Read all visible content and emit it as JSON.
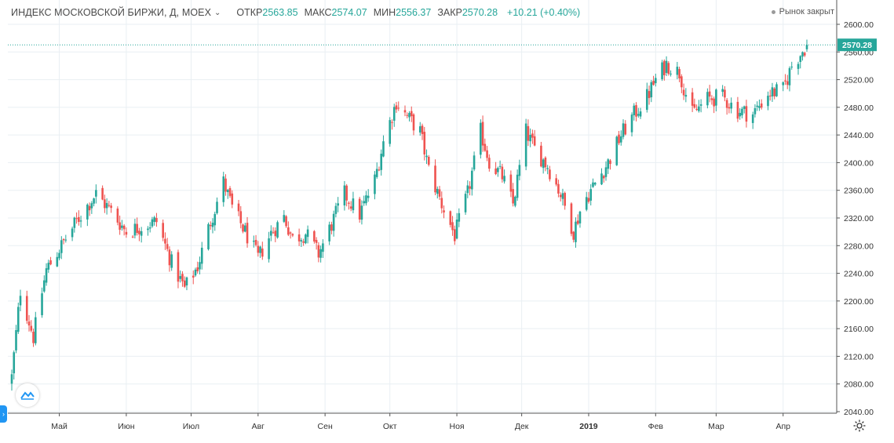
{
  "header": {
    "symbol": "ИНДЕКС МОСКОВСКОЙ БИРЖИ, Д, MOEX",
    "open_label": "ОТКР",
    "open": "2563.85",
    "high_label": "МАКС",
    "high": "2574.07",
    "low_label": "МИН",
    "low": "2556.37",
    "close_label": "ЗАКР",
    "close": "2570.28",
    "change": "+10.21 (+0.40%)",
    "market_status": "Рынок закрыт"
  },
  "colors": {
    "up": "#26a69a",
    "down": "#ef5350",
    "grid": "#e9eff3",
    "price_line": "#26a69a"
  },
  "icons": {
    "chevron": "chevron-down-icon",
    "logo": "tradingview-logo-icon",
    "settings": "gear-icon"
  },
  "chart_data": {
    "type": "candlestick",
    "x_tick_labels": [
      "Май",
      "Июн",
      "Июл",
      "Авг",
      "Сен",
      "Окт",
      "Ноя",
      "Дек",
      "2019",
      "Фев",
      "Мар",
      "Апр"
    ],
    "y_tick_labels": [
      "2040.00",
      "2080.00",
      "2120.00",
      "2160.00",
      "2200.00",
      "2240.00",
      "2280.00",
      "2320.00",
      "2360.00",
      "2400.00",
      "2440.00",
      "2480.00",
      "2520.00",
      "2560.00",
      "2600.00"
    ],
    "ylim": [
      2030,
      2605
    ],
    "last_price": 2570.28,
    "last_price_label": "2570.28",
    "grid": true,
    "path_points": [
      [
        "2018-04-09",
        2090
      ],
      [
        "2018-04-13",
        2215
      ],
      [
        "2018-04-19",
        2148
      ],
      [
        "2018-04-25",
        2245
      ],
      [
        "2018-05-04",
        2290
      ],
      [
        "2018-05-10",
        2320
      ],
      [
        "2018-05-18",
        2355
      ],
      [
        "2018-05-25",
        2330
      ],
      [
        "2018-06-01",
        2300
      ],
      [
        "2018-06-08",
        2308
      ],
      [
        "2018-06-15",
        2315
      ],
      [
        "2018-06-22",
        2255
      ],
      [
        "2018-06-28",
        2218
      ],
      [
        "2018-07-04",
        2250
      ],
      [
        "2018-07-10",
        2315
      ],
      [
        "2018-07-16",
        2372
      ],
      [
        "2018-07-20",
        2335
      ],
      [
        "2018-07-26",
        2300
      ],
      [
        "2018-08-01",
        2262
      ],
      [
        "2018-08-07",
        2298
      ],
      [
        "2018-08-13",
        2322
      ],
      [
        "2018-08-17",
        2290
      ],
      [
        "2018-08-23",
        2298
      ],
      [
        "2018-08-29",
        2268
      ],
      [
        "2018-09-05",
        2318
      ],
      [
        "2018-09-10",
        2355
      ],
      [
        "2018-09-17",
        2325
      ],
      [
        "2018-09-24",
        2375
      ],
      [
        "2018-09-28",
        2430
      ],
      [
        "2018-10-04",
        2488
      ],
      [
        "2018-10-08",
        2470
      ],
      [
        "2018-10-15",
        2445
      ],
      [
        "2018-10-19",
        2390
      ],
      [
        "2018-10-25",
        2340
      ],
      [
        "2018-10-31",
        2295
      ],
      [
        "2018-11-06",
        2355
      ],
      [
        "2018-11-12",
        2445
      ],
      [
        "2018-11-16",
        2402
      ],
      [
        "2018-11-22",
        2380
      ],
      [
        "2018-11-27",
        2340
      ],
      [
        "2018-12-03",
        2445
      ],
      [
        "2018-12-07",
        2420
      ],
      [
        "2018-12-13",
        2395
      ],
      [
        "2018-12-19",
        2355
      ],
      [
        "2018-12-25",
        2300
      ],
      [
        "2018-12-29",
        2340
      ],
      [
        "2019-01-10",
        2400
      ],
      [
        "2019-01-16",
        2440
      ],
      [
        "2019-01-22",
        2470
      ],
      [
        "2019-01-28",
        2495
      ],
      [
        "2019-02-01",
        2520
      ],
      [
        "2019-02-06",
        2543
      ],
      [
        "2019-02-12",
        2530
      ],
      [
        "2019-02-18",
        2470
      ],
      [
        "2019-02-25",
        2492
      ],
      [
        "2019-03-04",
        2495
      ],
      [
        "2019-03-11",
        2475
      ],
      [
        "2019-03-18",
        2470
      ],
      [
        "2019-03-25",
        2500
      ],
      [
        "2019-04-01",
        2505
      ],
      [
        "2019-04-05",
        2540
      ],
      [
        "2019-04-12",
        2570
      ]
    ]
  }
}
